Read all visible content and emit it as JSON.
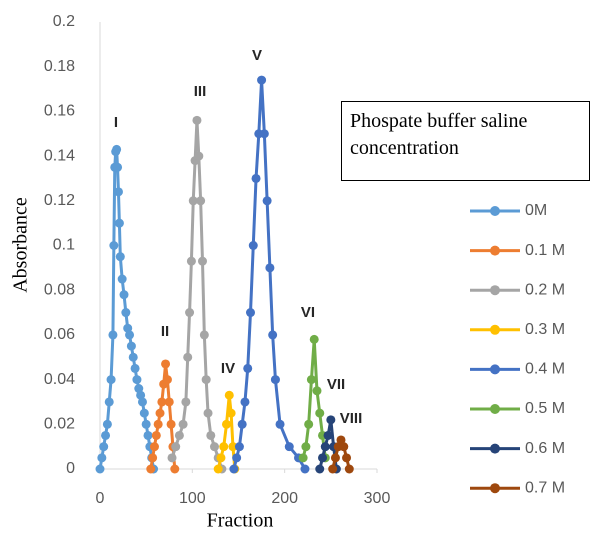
{
  "chart_data": {
    "type": "line",
    "y_label": "Absorbance",
    "x_label": "Fraction",
    "legend_title": "Phospate buffer saline concentration",
    "xlim": [
      0,
      300
    ],
    "xticks": [
      0,
      100,
      200,
      300
    ],
    "ylim": [
      0,
      0.2
    ],
    "yticks": [
      0,
      0.02,
      0.04,
      0.06,
      0.08,
      0.1,
      0.12,
      0.14,
      0.16,
      0.18,
      0.2
    ],
    "annotations": [
      "I",
      "II",
      "III",
      "IV",
      "V",
      "VI",
      "VII",
      "VIII"
    ],
    "series": [
      {
        "name": "0M",
        "color": "#5b9bd5",
        "x": [
          0,
          2,
          4,
          6,
          8,
          10,
          12,
          14,
          15,
          16,
          17,
          18,
          19,
          20,
          21,
          22,
          24,
          26,
          28,
          30,
          32,
          34,
          36,
          38,
          40,
          42,
          44,
          46,
          48,
          50,
          52,
          54,
          56,
          58
        ],
        "values": [
          0,
          0.005,
          0.01,
          0.015,
          0.02,
          0.03,
          0.04,
          0.06,
          0.1,
          0.135,
          0.142,
          0.143,
          0.135,
          0.124,
          0.11,
          0.095,
          0.085,
          0.078,
          0.07,
          0.063,
          0.06,
          0.055,
          0.05,
          0.045,
          0.04,
          0.036,
          0.033,
          0.03,
          0.025,
          0.02,
          0.015,
          0.01,
          0.005,
          0
        ]
      },
      {
        "name": "0.1 M",
        "color": "#ed7d31",
        "x": [
          55,
          57,
          59,
          61,
          63,
          65,
          67,
          69,
          71,
          73,
          75,
          77,
          79,
          81
        ],
        "values": [
          0,
          0.005,
          0.01,
          0.015,
          0.02,
          0.025,
          0.03,
          0.038,
          0.047,
          0.04,
          0.03,
          0.02,
          0.01,
          0
        ]
      },
      {
        "name": "0.2 M",
        "color": "#a5a5a5",
        "x": [
          78,
          82,
          86,
          90,
          93,
          95,
          97,
          99,
          101,
          103,
          105,
          107,
          109,
          111,
          113,
          115,
          117,
          120,
          124,
          128,
          132
        ],
        "values": [
          0.005,
          0.01,
          0.015,
          0.02,
          0.03,
          0.05,
          0.07,
          0.093,
          0.12,
          0.138,
          0.156,
          0.14,
          0.12,
          0.093,
          0.06,
          0.04,
          0.025,
          0.015,
          0.01,
          0.005,
          0
        ]
      },
      {
        "name": "0.3 M",
        "color": "#ffc000",
        "x": [
          128,
          131,
          134,
          137,
          140,
          142,
          144,
          146
        ],
        "values": [
          0,
          0.005,
          0.01,
          0.02,
          0.033,
          0.025,
          0.01,
          0
        ]
      },
      {
        "name": "0.4 M",
        "color": "#4472c4",
        "x": [
          145,
          148,
          151,
          154,
          157,
          160,
          163,
          166,
          169,
          172,
          175,
          178,
          181,
          184,
          187,
          190,
          195,
          205,
          215,
          222
        ],
        "values": [
          0,
          0.005,
          0.01,
          0.02,
          0.03,
          0.045,
          0.07,
          0.1,
          0.13,
          0.15,
          0.174,
          0.15,
          0.12,
          0.09,
          0.06,
          0.04,
          0.02,
          0.01,
          0.005,
          0
        ]
      },
      {
        "name": "0.5 M",
        "color": "#70ad47",
        "x": [
          220,
          223,
          226,
          229,
          232,
          235,
          238,
          241,
          244
        ],
        "values": [
          0.005,
          0.01,
          0.02,
          0.04,
          0.058,
          0.035,
          0.025,
          0.015,
          0.005
        ]
      },
      {
        "name": "0.6 M",
        "color": "#264478",
        "x": [
          238,
          241,
          244,
          247,
          250,
          253,
          256
        ],
        "values": [
          0,
          0.005,
          0.01,
          0.015,
          0.022,
          0.01,
          0
        ]
      },
      {
        "name": "0.7 M",
        "color": "#9e480e",
        "x": [
          252,
          255,
          258,
          261,
          264,
          267,
          270
        ],
        "values": [
          0,
          0.005,
          0.01,
          0.013,
          0.01,
          0.005,
          0
        ]
      }
    ]
  }
}
